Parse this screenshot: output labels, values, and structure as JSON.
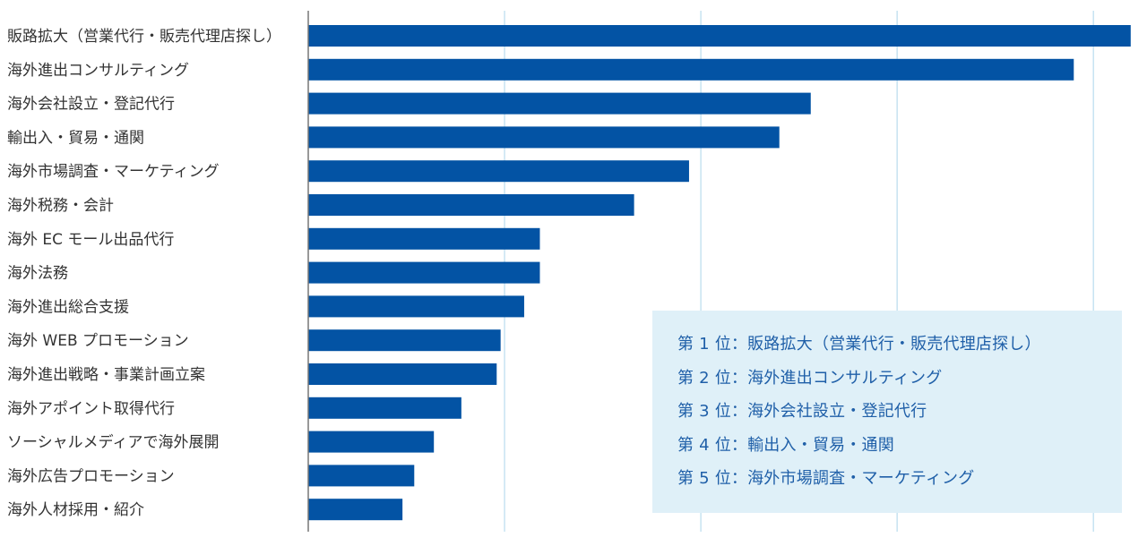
{
  "chart_data": {
    "type": "bar",
    "orientation": "horizontal",
    "categories": [
      "販路拡大（営業代行・販売代理店探し）",
      "海外進出コンサルティング",
      "海外会社設立・登記代行",
      "輸出入・貿易・通関",
      "海外市場調査・マーケティング",
      "海外税務・会計",
      "海外 EC モール出品代行",
      "海外法務",
      "海外進出総合支援",
      "海外 WEB プロモーション",
      "海外進出戦略・事業計画立案",
      "海外アポイント取得代行",
      "ソーシャルメディアで海外展開",
      "海外広告プロモーション",
      "海外人材採用・紹介"
    ],
    "values": [
      4.19,
      3.9,
      2.56,
      2.4,
      1.94,
      1.66,
      1.18,
      1.18,
      1.1,
      0.98,
      0.96,
      0.78,
      0.64,
      0.54,
      0.48
    ],
    "xlim": [
      0,
      4.2
    ],
    "grid": true,
    "bar_color": "#0353a4",
    "grid_color": "#b9dcee",
    "axis_color": "#777777",
    "label_color": "#333333"
  },
  "ranking": {
    "items": [
      "第 1 位：販路拡大（営業代行・販売代理店探し）",
      "第 2 位：海外進出コンサルティング",
      "第 3 位：海外会社設立・登記代行",
      "第 4 位：輸出入・貿易・通関",
      "第 5 位：海外市場調査・マーケティング"
    ],
    "bg_color": "#dff0f8",
    "text_color": "#1f5fa8"
  }
}
